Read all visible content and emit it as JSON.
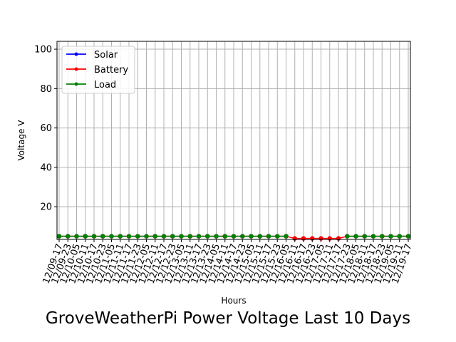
{
  "chart_data": {
    "type": "line",
    "title": "GroveWeatherPi Power Voltage Last 10 Days",
    "xlabel": "Hours",
    "ylabel": "Voltage V",
    "ylim": [
      3.4,
      104
    ],
    "yticks": [
      20,
      40,
      60,
      80,
      100
    ],
    "grid": true,
    "legend_position": "top-left",
    "x": [
      "12/09-17",
      "12/09-23",
      "12/10-05",
      "12/10-11",
      "12/10-17",
      "12/10-23",
      "12/11-05",
      "12/11-11",
      "12/11-17",
      "12/11-23",
      "12/12-05",
      "12/12-11",
      "12/12-17",
      "12/12-23",
      "12/13-05",
      "12/13-11",
      "12/13-17",
      "12/13-23",
      "12/14-05",
      "12/14-11",
      "12/14-17",
      "12/14-23",
      "12/15-05",
      "12/15-11",
      "12/15-17",
      "12/15-23",
      "12/16-05",
      "12/16-11",
      "12/16-17",
      "12/16-23",
      "12/17-05",
      "12/17-11",
      "12/17-17",
      "12/17-23",
      "12/18-05",
      "12/18-11",
      "12/18-17",
      "12/18-23",
      "12/19-05",
      "12/19-11",
      "12/19-17"
    ],
    "series": [
      {
        "name": "Solar",
        "color": "#0000ff",
        "values": [
          5,
          5,
          5,
          5,
          5,
          5,
          5,
          5,
          5,
          5,
          5,
          5,
          5,
          5,
          5,
          5,
          5,
          5,
          5,
          5,
          5,
          5,
          5,
          5,
          5,
          5,
          5,
          null,
          null,
          null,
          null,
          null,
          null,
          5,
          5,
          5,
          5,
          5,
          5,
          5,
          5
        ]
      },
      {
        "name": "Battery",
        "color": "#ff0000",
        "values": [
          5,
          5,
          5,
          5,
          5,
          5,
          5,
          5,
          5,
          5,
          5,
          5,
          5,
          5,
          5,
          5,
          5,
          5,
          5,
          5,
          5,
          5,
          5,
          5,
          5,
          5,
          5,
          3.9,
          3.9,
          3.9,
          3.9,
          3.9,
          3.9,
          5,
          5,
          5,
          5,
          5,
          5,
          5,
          5
        ]
      },
      {
        "name": "Load",
        "color": "#008000",
        "values": [
          5,
          5,
          5,
          5,
          5,
          5,
          5,
          5,
          5,
          5,
          5,
          5,
          5,
          5,
          5,
          5,
          5,
          5,
          5,
          5,
          5,
          5,
          5,
          5,
          5,
          5,
          5,
          null,
          null,
          null,
          null,
          null,
          null,
          5,
          5,
          5,
          5,
          5,
          5,
          5,
          5
        ]
      }
    ]
  }
}
